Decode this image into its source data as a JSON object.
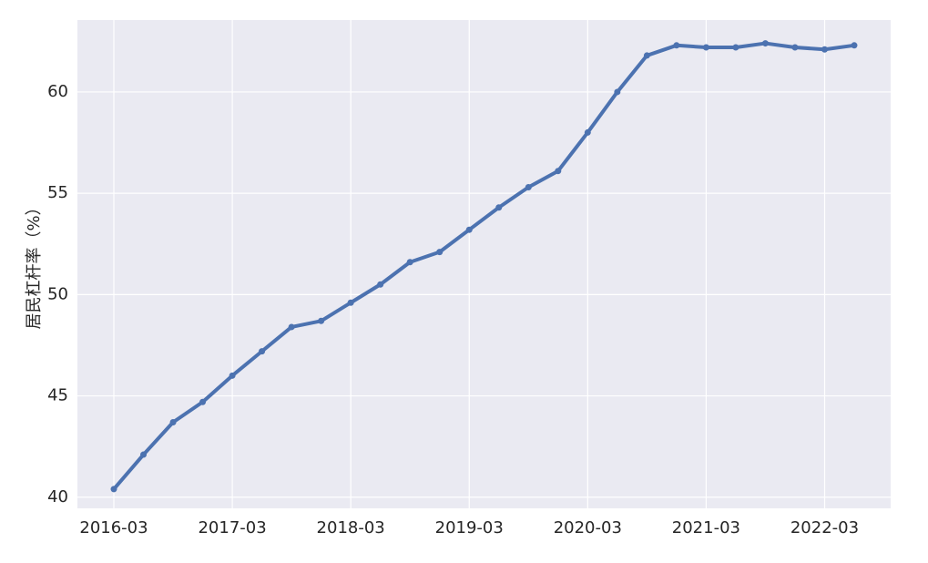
{
  "chart_data": {
    "type": "line",
    "y_label": "居民杠杆率（%）",
    "x": [
      "2016-03",
      "2016-06",
      "2016-09",
      "2016-12",
      "2017-03",
      "2017-06",
      "2017-09",
      "2017-12",
      "2018-03",
      "2018-06",
      "2018-09",
      "2018-12",
      "2019-03",
      "2019-06",
      "2019-09",
      "2019-12",
      "2020-03",
      "2020-06",
      "2020-09",
      "2020-12",
      "2021-03",
      "2021-06",
      "2021-09",
      "2021-12",
      "2022-03",
      "2022-06"
    ],
    "series": [
      {
        "color": "#4c72b0",
        "values": [
          40.4,
          42.1,
          43.7,
          44.7,
          46.0,
          47.2,
          48.4,
          48.7,
          49.6,
          50.5,
          51.6,
          52.1,
          53.2,
          54.3,
          55.3,
          56.1,
          58.0,
          60.0,
          61.8,
          62.3,
          62.2,
          62.2,
          62.4,
          62.2,
          62.1,
          62.3
        ]
      }
    ],
    "xticks": [
      "2016-03",
      "2017-03",
      "2018-03",
      "2019-03",
      "2020-03",
      "2021-03",
      "2022-03"
    ],
    "ylim": [
      39.45,
      63.55
    ],
    "yticks": [
      40,
      45,
      50,
      55,
      60
    ],
    "grid": true,
    "background": "#eaeaf2"
  }
}
